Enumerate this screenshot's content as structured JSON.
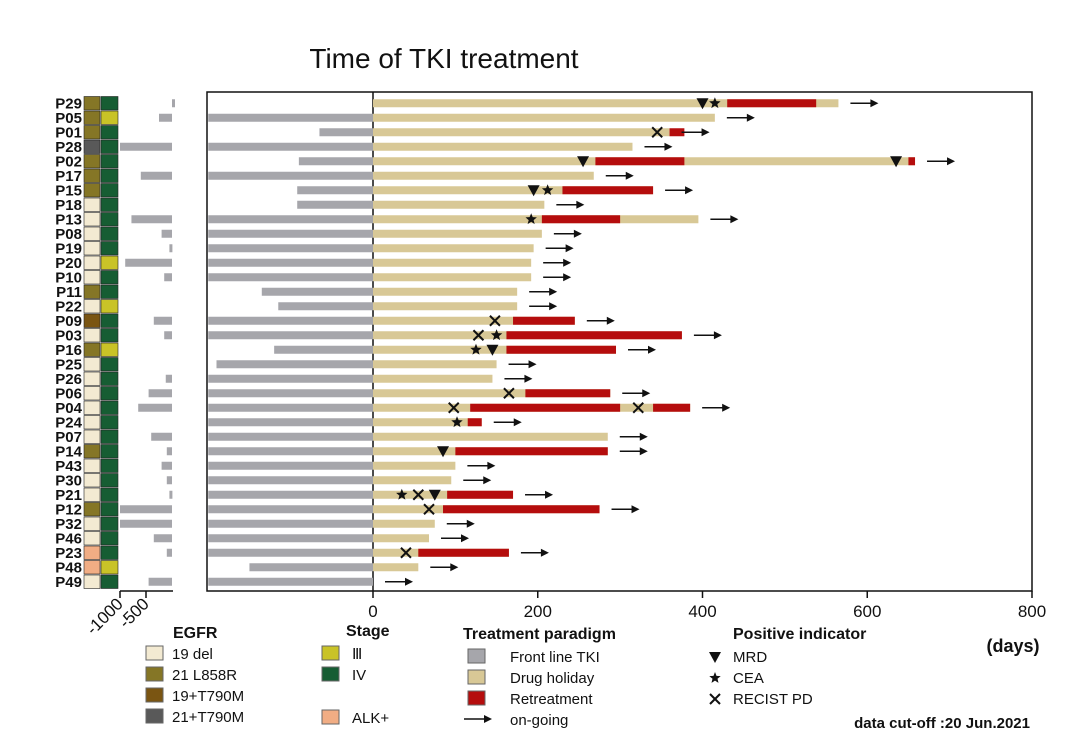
{
  "chart_data": {
    "type": "bar",
    "title": "Time of TKI treatment",
    "x_unit_label": "(days)",
    "x_ticks": [
      0,
      200,
      400,
      600,
      800
    ],
    "left_ticks": [
      "-1000",
      "-500"
    ],
    "xlim": [
      0,
      800
    ],
    "grid": false,
    "data_cutoff": "data cut-off :20 Jun.2021",
    "colors": {
      "front_line": "#a6a6ab",
      "drug_holiday": "#d8c896",
      "retreatment": "#b50d0d",
      "egfr_19del": "#f3ead2",
      "egfr_l858r": "#857626",
      "egfr_19t790m": "#7a5512",
      "egfr_21t790m": "#595959",
      "alk": "#f1ad84",
      "stage_iii": "#c9c327",
      "stage_iv": "#165d33"
    },
    "patients": [
      {
        "id": "P29",
        "egfr": "l858r",
        "stage": "IV",
        "front": [
          0
        ],
        "front_main": 0,
        "holiday_end": 565,
        "retreat": [
          [
            430,
            538
          ]
        ],
        "events": [
          {
            "type": "mrd",
            "day": 400
          },
          {
            "type": "cea",
            "day": 415
          }
        ]
      },
      {
        "id": "P05",
        "egfr": "l858r",
        "stage": "III",
        "front": [
          -250
        ],
        "front_main": -200,
        "holiday_end": 415,
        "retreat": [],
        "events": []
      },
      {
        "id": "P01",
        "egfr": "l858r",
        "stage": "IV",
        "front": [],
        "front_main": -65,
        "holiday_end": 360,
        "retreat": [
          [
            360,
            378
          ]
        ],
        "events": [
          {
            "type": "pd",
            "day": 345
          }
        ]
      },
      {
        "id": "P28",
        "egfr": "21t790m",
        "stage": "IV",
        "front": [
          -1000
        ],
        "front_main": -200,
        "holiday_end": 315,
        "retreat": [],
        "events": []
      },
      {
        "id": "P02",
        "egfr": "l858r",
        "stage": "IV",
        "front": [],
        "front_main": -90,
        "holiday_end": 658,
        "retreat": [
          [
            270,
            378
          ],
          [
            650,
            658
          ]
        ],
        "events": [
          {
            "type": "mrd",
            "day": 255
          },
          {
            "type": "mrd",
            "day": 635
          }
        ]
      },
      {
        "id": "P17",
        "egfr": "l858r",
        "stage": "IV",
        "front": [
          -600
        ],
        "front_main": -200,
        "holiday_end": 268,
        "retreat": [],
        "events": []
      },
      {
        "id": "P15",
        "egfr": "l858r",
        "stage": "IV",
        "front": [],
        "front_main": -92,
        "holiday_end": 340,
        "retreat": [
          [
            230,
            340
          ]
        ],
        "events": [
          {
            "type": "mrd",
            "day": 195
          },
          {
            "type": "cea",
            "day": 212
          }
        ]
      },
      {
        "id": "P18",
        "egfr": "19del",
        "stage": "IV",
        "front": [],
        "front_main": -92,
        "holiday_end": 208,
        "retreat": [],
        "events": []
      },
      {
        "id": "P13",
        "egfr": "19del",
        "stage": "IV",
        "front": [
          -780
        ],
        "front_main": -200,
        "holiday_end": 395,
        "retreat": [
          [
            205,
            300
          ]
        ],
        "events": [
          {
            "type": "cea",
            "day": 192
          }
        ]
      },
      {
        "id": "P08",
        "egfr": "19del",
        "stage": "IV",
        "front": [
          -200
        ],
        "front_main": -200,
        "holiday_end": 205,
        "retreat": [],
        "events": []
      },
      {
        "id": "P19",
        "egfr": "19del",
        "stage": "IV",
        "front": [
          -50
        ],
        "front_main": -200,
        "holiday_end": 195,
        "retreat": [],
        "events": []
      },
      {
        "id": "P20",
        "egfr": "19del",
        "stage": "III",
        "front": [
          -900
        ],
        "front_main": -200,
        "holiday_end": 192,
        "retreat": [],
        "events": []
      },
      {
        "id": "P10",
        "egfr": "19del",
        "stage": "IV",
        "front": [
          -150
        ],
        "front_main": -200,
        "holiday_end": 192,
        "retreat": [],
        "events": []
      },
      {
        "id": "P11",
        "egfr": "l858r",
        "stage": "IV",
        "front": [],
        "front_main": -135,
        "holiday_end": 175,
        "retreat": [],
        "events": []
      },
      {
        "id": "P22",
        "egfr": "19del",
        "stage": "III",
        "front": [],
        "front_main": -115,
        "holiday_end": 175,
        "retreat": [],
        "events": []
      },
      {
        "id": "P09",
        "egfr": "19t790m",
        "stage": "IV",
        "front": [
          -350
        ],
        "front_main": -200,
        "holiday_end": 245,
        "retreat": [
          [
            170,
            245
          ]
        ],
        "events": [
          {
            "type": "pd",
            "day": 148
          }
        ]
      },
      {
        "id": "P03",
        "egfr": "19del",
        "stage": "IV",
        "front": [
          -150
        ],
        "front_main": -200,
        "holiday_end": 375,
        "retreat": [
          [
            162,
            375
          ]
        ],
        "events": [
          {
            "type": "pd",
            "day": 128
          },
          {
            "type": "cea",
            "day": 150
          }
        ]
      },
      {
        "id": "P16",
        "egfr": "l858r",
        "stage": "III",
        "front": [],
        "front_main": -120,
        "holiday_end": 295,
        "retreat": [
          [
            162,
            295
          ]
        ],
        "events": [
          {
            "type": "cea",
            "day": 125
          },
          {
            "type": "mrd",
            "day": 145
          }
        ]
      },
      {
        "id": "P25",
        "egfr": "19del",
        "stage": "IV",
        "front": [],
        "front_main": -190,
        "holiday_end": 150,
        "retreat": [],
        "events": []
      },
      {
        "id": "P26",
        "egfr": "19del",
        "stage": "IV",
        "front": [
          -120
        ],
        "front_main": -200,
        "holiday_end": 145,
        "retreat": [],
        "events": []
      },
      {
        "id": "P06",
        "egfr": "19del",
        "stage": "IV",
        "front": [
          -450
        ],
        "front_main": -200,
        "holiday_end": 288,
        "retreat": [
          [
            185,
            288
          ]
        ],
        "events": [
          {
            "type": "pd",
            "day": 165
          }
        ]
      },
      {
        "id": "P04",
        "egfr": "19del",
        "stage": "IV",
        "front": [
          -650
        ],
        "front_main": -200,
        "holiday_end": 385,
        "retreat": [
          [
            118,
            300
          ],
          [
            340,
            385
          ]
        ],
        "events": [
          {
            "type": "pd",
            "day": 98
          },
          {
            "type": "pd",
            "day": 322
          }
        ]
      },
      {
        "id": "P24",
        "egfr": "19del",
        "stage": "IV",
        "front": [],
        "front_main": -200,
        "holiday_end": 132,
        "retreat": [
          [
            115,
            132
          ]
        ],
        "events": [
          {
            "type": "cea",
            "day": 102
          }
        ]
      },
      {
        "id": "P07",
        "egfr": "19del",
        "stage": "IV",
        "front": [
          -400
        ],
        "front_main": -200,
        "holiday_end": 285,
        "retreat": [],
        "events": []
      },
      {
        "id": "P14",
        "egfr": "l858r",
        "stage": "IV",
        "front": [
          -100
        ],
        "front_main": -200,
        "holiday_end": 285,
        "retreat": [
          [
            100,
            285
          ]
        ],
        "events": [
          {
            "type": "mrd",
            "day": 85
          }
        ]
      },
      {
        "id": "P43",
        "egfr": "19del",
        "stage": "IV",
        "front": [
          -200
        ],
        "front_main": -200,
        "holiday_end": 100,
        "retreat": [],
        "events": []
      },
      {
        "id": "P30",
        "egfr": "19del",
        "stage": "IV",
        "front": [
          -100
        ],
        "front_main": -200,
        "holiday_end": 95,
        "retreat": [],
        "events": []
      },
      {
        "id": "P21",
        "egfr": "19del",
        "stage": "IV",
        "front": [
          -50
        ],
        "front_main": -200,
        "holiday_end": 170,
        "retreat": [
          [
            90,
            170
          ]
        ],
        "events": [
          {
            "type": "cea",
            "day": 35
          },
          {
            "type": "pd",
            "day": 55
          },
          {
            "type": "mrd",
            "day": 75
          }
        ]
      },
      {
        "id": "P12",
        "egfr": "l858r",
        "stage": "IV",
        "front": [
          -1000
        ],
        "front_main": -200,
        "holiday_end": 275,
        "retreat": [
          [
            85,
            275
          ]
        ],
        "events": [
          {
            "type": "pd",
            "day": 68
          }
        ]
      },
      {
        "id": "P32",
        "egfr": "19del",
        "stage": "IV",
        "front": [
          -1060
        ],
        "front_main": -200,
        "holiday_end": 75,
        "retreat": [],
        "events": []
      },
      {
        "id": "P46",
        "egfr": "19del",
        "stage": "IV",
        "front": [
          -350
        ],
        "front_main": -200,
        "holiday_end": 68,
        "retreat": [],
        "events": []
      },
      {
        "id": "P23",
        "egfr": "alk",
        "stage": "IV",
        "front": [
          -100
        ],
        "front_main": -200,
        "holiday_end": 165,
        "retreat": [
          [
            55,
            165
          ]
        ],
        "events": [
          {
            "type": "pd",
            "day": 40
          }
        ]
      },
      {
        "id": "P48",
        "egfr": "alk",
        "stage": "III",
        "front": [],
        "front_main": -150,
        "holiday_end": 55,
        "retreat": [],
        "events": []
      },
      {
        "id": "P49",
        "egfr": "19del",
        "stage": "IV",
        "front": [
          -450
        ],
        "front_main": -200,
        "holiday_end": 0,
        "retreat": [],
        "events": []
      }
    ]
  },
  "legend": {
    "egfr": {
      "title": "EGFR",
      "items": [
        {
          "label": "19 del",
          "color": "#f3ead2"
        },
        {
          "label": "21 L858R",
          "color": "#857626"
        },
        {
          "label": "19+T790M",
          "color": "#7a5512"
        },
        {
          "label": "21+T790M",
          "color": "#595959"
        }
      ]
    },
    "stage": {
      "title": "Stage",
      "items": [
        {
          "label": "Ⅲ",
          "color": "#c9c327"
        },
        {
          "label": "IV",
          "color": "#165d33"
        }
      ]
    },
    "alk": {
      "label": "ALK+",
      "color": "#f1ad84"
    },
    "paradigm": {
      "title": "Treatment paradigm",
      "items": [
        {
          "label": "Front line TKI",
          "color": "#a6a6ab"
        },
        {
          "label": "Drug holiday",
          "color": "#d8c896"
        },
        {
          "label": "Retreatment",
          "color": "#b50d0d"
        },
        {
          "label": "on-going",
          "color": ""
        }
      ]
    },
    "indicator": {
      "title": "Positive indicator",
      "items": [
        {
          "label": "MRD",
          "symbol": "mrd"
        },
        {
          "label": "CEA",
          "symbol": "cea"
        },
        {
          "label": "RECIST PD",
          "symbol": "pd"
        }
      ]
    }
  }
}
